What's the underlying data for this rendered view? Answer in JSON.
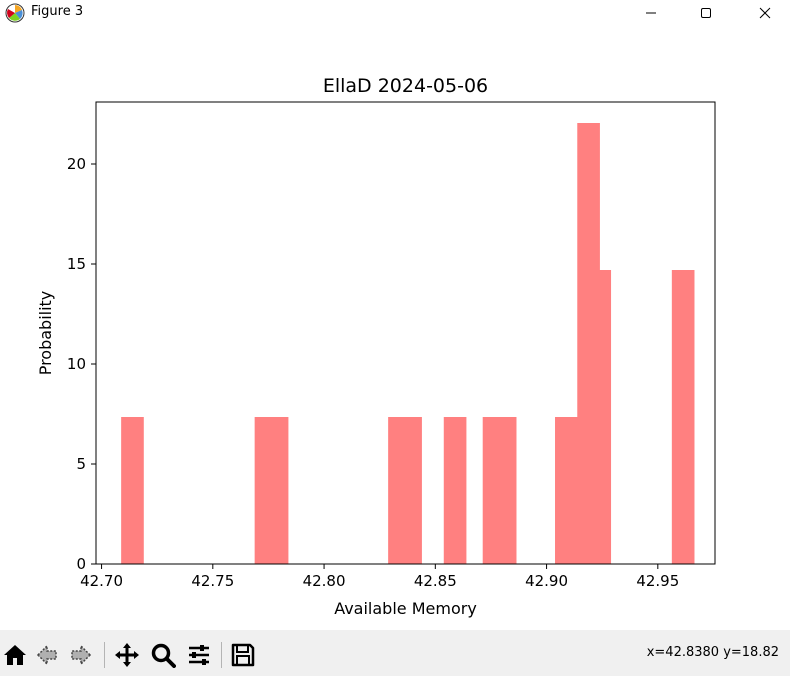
{
  "window": {
    "title": "Figure 3",
    "icons": {
      "app": "matplotlib-icon",
      "minimize": "minimize-icon",
      "maximize": "maximize-icon",
      "close": "close-icon"
    }
  },
  "toolbar": {
    "buttons": [
      {
        "name": "home-icon",
        "label": "Home"
      },
      {
        "name": "back-icon",
        "label": "Back"
      },
      {
        "name": "forward-icon",
        "label": "Forward"
      },
      {
        "name": "pan-icon",
        "label": "Pan"
      },
      {
        "name": "zoom-icon",
        "label": "Zoom"
      },
      {
        "name": "configure-subplots-icon",
        "label": "Subplots"
      },
      {
        "name": "save-icon",
        "label": "Save"
      }
    ],
    "coords": "x=42.8380 y=18.82"
  },
  "colors": {
    "bar": "#ff8080",
    "axes": "#000000",
    "titlebar": "#ffffff",
    "toolbar": "#f0f0f0"
  },
  "chart_data": {
    "type": "bar",
    "title": "EllaD 2024-05-06",
    "xlabel": "Available Memory",
    "ylabel": "Probability",
    "xlim": [
      42.6975,
      42.9757
    ],
    "ylim": [
      0,
      23.1
    ],
    "xticks": [
      42.7,
      42.75,
      42.8,
      42.85,
      42.9,
      42.95
    ],
    "xtick_labels": [
      "42.70",
      "42.75",
      "42.80",
      "42.85",
      "42.90",
      "42.95"
    ],
    "yticks": [
      0,
      5,
      10,
      15,
      20
    ],
    "ytick_labels": [
      "0",
      "5",
      "10",
      "15",
      "20"
    ],
    "bin_width": 0.005,
    "bins": [
      {
        "x0": 42.7088,
        "x1": 42.7138,
        "value": 7.35
      },
      {
        "x0": 42.7138,
        "x1": 42.7188,
        "value": 7.35
      },
      {
        "x0": 42.7688,
        "x1": 42.7738,
        "value": 7.35
      },
      {
        "x0": 42.7738,
        "x1": 42.7788,
        "value": 7.35
      },
      {
        "x0": 42.7788,
        "x1": 42.7838,
        "value": 7.35
      },
      {
        "x0": 42.8288,
        "x1": 42.8338,
        "value": 7.35
      },
      {
        "x0": 42.8338,
        "x1": 42.8388,
        "value": 7.35
      },
      {
        "x0": 42.8388,
        "x1": 42.8438,
        "value": 7.35
      },
      {
        "x0": 42.8538,
        "x1": 42.8588,
        "value": 7.35
      },
      {
        "x0": 42.8588,
        "x1": 42.8638,
        "value": 7.35
      },
      {
        "x0": 42.8713,
        "x1": 42.8763,
        "value": 7.35
      },
      {
        "x0": 42.8763,
        "x1": 42.8813,
        "value": 7.35
      },
      {
        "x0": 42.8813,
        "x1": 42.8863,
        "value": 7.35
      },
      {
        "x0": 42.9038,
        "x1": 42.9088,
        "value": 7.35
      },
      {
        "x0": 42.9088,
        "x1": 42.9138,
        "value": 7.35
      },
      {
        "x0": 42.9138,
        "x1": 42.9188,
        "value": 22.05
      },
      {
        "x0": 42.9188,
        "x1": 42.9238,
        "value": 22.05
      },
      {
        "x0": 42.9238,
        "x1": 42.9288,
        "value": 14.7
      },
      {
        "x0": 42.9563,
        "x1": 42.9613,
        "value": 14.7
      },
      {
        "x0": 42.9613,
        "x1": 42.9663,
        "value": 14.7
      }
    ]
  }
}
